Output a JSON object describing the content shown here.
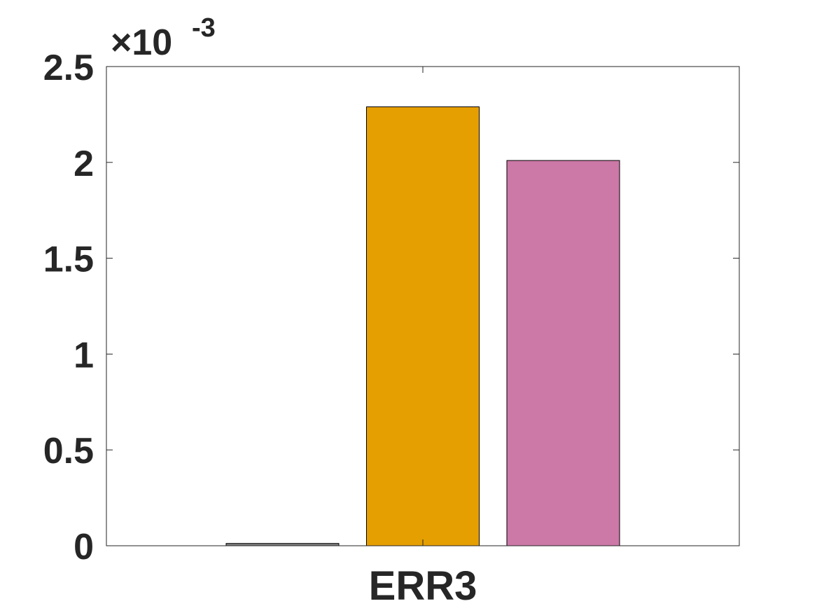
{
  "chart_data": {
    "type": "bar",
    "categories": [
      "ERR3"
    ],
    "series": [
      {
        "values": [
          1.2e-05
        ],
        "color": "#808080"
      },
      {
        "values": [
          0.00229
        ],
        "color": "#E69F00"
      },
      {
        "values": [
          0.00201
        ],
        "color": "#CC79A7"
      }
    ],
    "ylim": [
      0,
      0.0025
    ],
    "yticks": [
      0,
      0.0005,
      0.001,
      0.0015,
      0.002,
      0.0025
    ],
    "ytick_labels": [
      "0",
      "0.5",
      "1",
      "1.5",
      "2",
      "2.5"
    ],
    "y_exponent_label": {
      "base": "×10",
      "exponent": "-3"
    },
    "grid": false,
    "legend": false
  }
}
